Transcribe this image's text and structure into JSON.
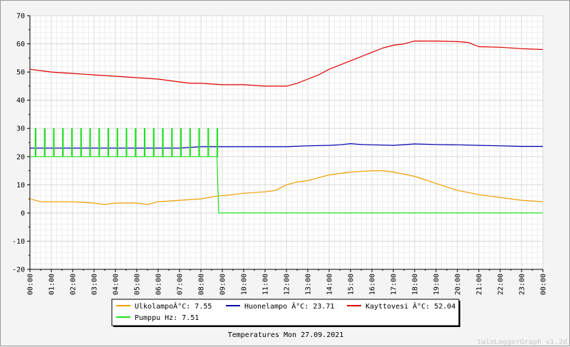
{
  "chart_data": {
    "type": "line",
    "title": "",
    "caption": "Temperatures Mon 27.09.2021",
    "watermark": "taloLoggerGraph v1.2d",
    "xlabel": "",
    "ylabel": "",
    "ylim": [
      -20,
      70
    ],
    "y_ticks": [
      -20,
      -10,
      0,
      10,
      20,
      30,
      40,
      50,
      60,
      70
    ],
    "xlim": [
      "00:00",
      "24:00"
    ],
    "x_ticks": [
      "00:00",
      "01:00",
      "02:00",
      "03:00",
      "04:00",
      "05:00",
      "06:00",
      "07:00",
      "08:00",
      "09:00",
      "10:00",
      "11:00",
      "12:00",
      "13:00",
      "14:00",
      "15:00",
      "16:00",
      "17:00",
      "18:00",
      "19:00",
      "20:00",
      "21:00",
      "22:00",
      "23:00",
      "00:00"
    ],
    "grid": true,
    "legend_placement": "bottom",
    "series": [
      {
        "name": "UlkolampoÂ°C",
        "legend": "UlkolampoÂ°C: 7.55",
        "color": "#f0a000",
        "x": [
          "00:00",
          "00:30",
          "01:00",
          "02:00",
          "03:00",
          "03:30",
          "04:00",
          "05:00",
          "05:30",
          "06:00",
          "07:00",
          "08:00",
          "08:45",
          "09:30",
          "10:00",
          "11:00",
          "11:30",
          "12:00",
          "12:30",
          "13:00",
          "13:30",
          "14:00",
          "15:00",
          "16:00",
          "16:30",
          "17:00",
          "18:00",
          "19:00",
          "20:00",
          "21:00",
          "22:00",
          "23:00",
          "24:00"
        ],
        "values": [
          5,
          4,
          4,
          4,
          3.5,
          3,
          3.5,
          3.5,
          3,
          4,
          4.5,
          5,
          6,
          6.5,
          7,
          7.5,
          8,
          10,
          11,
          11.5,
          12.5,
          13.5,
          14.5,
          15,
          15,
          14.5,
          13,
          10.5,
          8,
          6.5,
          5.5,
          4.5,
          4
        ]
      },
      {
        "name": "Huonelampo Â°C",
        "legend": "Huonelampo Â°C: 23.71",
        "color": "#0000b0",
        "x": [
          "00:00",
          "01:00",
          "02:00",
          "03:00",
          "04:00",
          "05:00",
          "06:00",
          "07:00",
          "08:00",
          "09:00",
          "10:00",
          "11:00",
          "12:00",
          "13:00",
          "14:00",
          "14:30",
          "15:00",
          "15:30",
          "16:00",
          "17:00",
          "18:00",
          "19:00",
          "20:00",
          "21:00",
          "22:00",
          "23:00",
          "24:00"
        ],
        "values": [
          23,
          23,
          23,
          23,
          23,
          23,
          23,
          23,
          23.5,
          23.5,
          23.5,
          23.5,
          23.5,
          23.8,
          24,
          24.2,
          24.6,
          24.3,
          24.2,
          24,
          24.5,
          24.3,
          24.2,
          24,
          23.8,
          23.6,
          23.6
        ]
      },
      {
        "name": "Kayttovesi Â°C",
        "legend": "Kayttovesi Â°C: 52.04",
        "color": "#e00000",
        "x": [
          "00:00",
          "00:30",
          "01:00",
          "02:00",
          "03:00",
          "04:00",
          "05:00",
          "06:00",
          "06:30",
          "07:00",
          "07:30",
          "08:00",
          "09:00",
          "10:00",
          "11:00",
          "12:00",
          "12:30",
          "13:00",
          "13:30",
          "14:00",
          "15:00",
          "15:30",
          "16:00",
          "16:30",
          "17:00",
          "17:30",
          "18:00",
          "18:30",
          "19:00",
          "20:00",
          "20:30",
          "21:00",
          "22:00",
          "23:00",
          "24:00"
        ],
        "values": [
          51,
          50.5,
          50,
          49.5,
          49,
          48.5,
          48,
          47.5,
          47,
          46.5,
          46,
          46,
          45.5,
          45.5,
          45,
          45,
          46,
          47.5,
          49,
          51,
          54,
          55.5,
          57,
          58.5,
          59.5,
          60,
          61,
          61,
          61,
          60.8,
          60.5,
          59,
          58.8,
          58.3,
          58
        ]
      },
      {
        "name": "Pumppu Hz",
        "legend": "Pumppu Hz: 7.51",
        "color": "#20e020",
        "pulse_base": 20,
        "pulse_peak": 30,
        "pulse_start": "00:15",
        "pulse_end": "08:45",
        "pulse_count": 21,
        "x": [
          "08:45",
          "08:50",
          "24:00"
        ],
        "values": [
          20,
          0,
          0
        ]
      }
    ]
  }
}
